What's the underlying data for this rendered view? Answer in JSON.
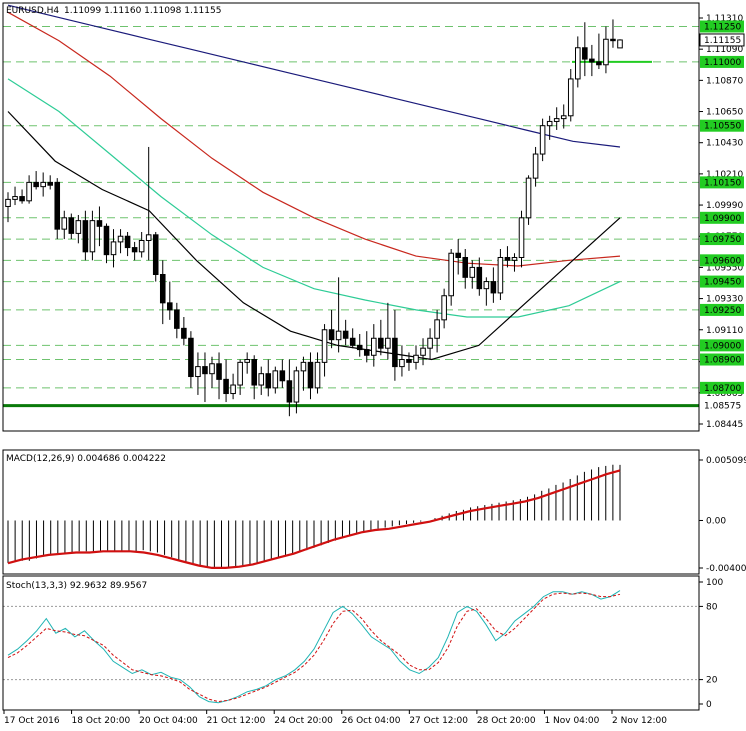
{
  "symbol_title": "EURUSD,H4",
  "ohlc_title": "1.11099 1.11160 1.11098 1.11155",
  "colors": {
    "background": "#ffffff",
    "frame": "#000000",
    "grid": "#c8c8c8",
    "bull": "#ffffff",
    "bear": "#000000",
    "sma_slow": "#1a1a7a",
    "sma_mid": "#c8281e",
    "sma_fast": "#2ecc96",
    "sma_short": "#000000",
    "level": "#0a7a0a",
    "level_label_bg": "#22cc22",
    "macd_signal": "#d01010",
    "stoch_main": "#20b4b4",
    "stoch_signal": "#d01010"
  },
  "price_axis_labels": [
    "1.11310",
    "1.11090",
    "1.10870",
    "1.10650",
    "1.10430",
    "1.10210",
    "1.09990",
    "1.09770",
    "1.09550",
    "1.09330",
    "1.09110",
    "1.08885",
    "1.08665",
    "1.08445"
  ],
  "current_price": "1.11155",
  "level_labels": [
    {
      "text": "1.11250",
      "value": 1.1125,
      "style": "dash"
    },
    {
      "text": "1.11000",
      "value": 1.11,
      "style": "dash"
    },
    {
      "text": "1.10550",
      "value": 1.1055,
      "style": "dash"
    },
    {
      "text": "1.10150",
      "value": 1.1015,
      "style": "dash"
    },
    {
      "text": "1.09900",
      "value": 1.099,
      "style": "dash"
    },
    {
      "text": "1.09750",
      "value": 1.0975,
      "style": "dash"
    },
    {
      "text": "1.09600",
      "value": 1.096,
      "style": "dash"
    },
    {
      "text": "1.09450",
      "value": 1.0945,
      "style": "dash"
    },
    {
      "text": "1.09250",
      "value": 1.0925,
      "style": "dash"
    },
    {
      "text": "1.09000",
      "value": 1.09,
      "style": "dash"
    },
    {
      "text": "1.08900",
      "value": 1.089,
      "style": "dash"
    },
    {
      "text": "1.08700",
      "value": 1.087,
      "style": "dash"
    },
    {
      "text": "1.08575",
      "value": 1.08575,
      "style": "solid"
    }
  ],
  "time_labels": [
    "17 Oct 2016",
    "18 Oct 20:00",
    "20 Oct 04:00",
    "21 Oct 12:00",
    "24 Oct 20:00",
    "26 Oct 04:00",
    "27 Oct 12:00",
    "28 Oct 20:00",
    "1 Nov 04:00",
    "2 Nov 12:00"
  ],
  "macd_title": "MACD(12,26,9) 0.004686 0.004222",
  "macd_axis_labels": [
    "0.005099",
    "0.00",
    "-0.004007"
  ],
  "stoch_title": "Stoch(13,3,3) 92.9632 89.9567",
  "stoch_axis_labels": [
    "100",
    "80",
    "20",
    "0"
  ],
  "chart_data": [
    {
      "type": "candlestick",
      "title": "EURUSD,H4",
      "ylim": [
        1.08445,
        1.1131
      ],
      "x_labels": [
        "17 Oct 2016",
        "18 Oct 20:00",
        "20 Oct 04:00",
        "21 Oct 12:00",
        "24 Oct 20:00",
        "26 Oct 04:00",
        "27 Oct 12:00",
        "28 Oct 20:00",
        "1 Nov 04:00",
        "2 Nov 12:00"
      ],
      "candles": [
        [
          1.0998,
          1.1008,
          1.0987,
          1.1003
        ],
        [
          1.1003,
          1.1012,
          1.0999,
          1.1005
        ],
        [
          1.1005,
          1.101,
          1.1,
          1.1002
        ],
        [
          1.1002,
          1.102,
          1.1,
          1.1015
        ],
        [
          1.1015,
          1.1023,
          1.101,
          1.1012
        ],
        [
          1.1012,
          1.1022,
          1.1005,
          1.1015
        ],
        [
          1.1015,
          1.102,
          1.101,
          1.1013
        ],
        [
          1.1015,
          1.1018,
          1.0975,
          1.0982
        ],
        [
          1.0982,
          1.0995,
          1.0975,
          1.099
        ],
        [
          1.099,
          1.0993,
          1.0975,
          1.0979
        ],
        [
          1.0979,
          1.0992,
          1.0972,
          1.0988
        ],
        [
          1.0988,
          1.0995,
          1.096,
          1.0966
        ],
        [
          1.0966,
          1.0995,
          1.096,
          1.0988
        ],
        [
          1.0988,
          1.0998,
          1.097,
          1.0984
        ],
        [
          1.0984,
          1.0986,
          1.0958,
          1.0964
        ],
        [
          1.0964,
          1.0982,
          1.0955,
          1.0973
        ],
        [
          1.0973,
          1.0982,
          1.0965,
          1.0977
        ],
        [
          1.0977,
          1.098,
          1.0963,
          1.0969
        ],
        [
          1.0969,
          1.0973,
          1.096,
          1.0966
        ],
        [
          1.0966,
          1.098,
          1.0962,
          1.0974
        ],
        [
          1.0974,
          1.104,
          1.096,
          1.0978
        ],
        [
          1.0978,
          1.098,
          1.0945,
          1.095
        ],
        [
          1.095,
          1.096,
          1.0915,
          1.093
        ],
        [
          1.093,
          1.0945,
          1.0918,
          1.0925
        ],
        [
          1.0925,
          1.093,
          1.0905,
          1.0912
        ],
        [
          1.0912,
          1.092,
          1.09,
          1.0905
        ],
        [
          1.0905,
          1.091,
          1.087,
          1.0878
        ],
        [
          1.0878,
          1.0895,
          1.0865,
          1.0885
        ],
        [
          1.0885,
          1.0895,
          1.086,
          1.088
        ],
        [
          1.088,
          1.0892,
          1.087,
          1.0887
        ],
        [
          1.0887,
          1.0895,
          1.0862,
          1.0876
        ],
        [
          1.0876,
          1.089,
          1.086,
          1.0866
        ],
        [
          1.0866,
          1.088,
          1.0862,
          1.0872
        ],
        [
          1.0872,
          1.089,
          1.0865,
          1.0888
        ],
        [
          1.0888,
          1.0895,
          1.088,
          1.089
        ],
        [
          1.089,
          1.0893,
          1.0862,
          1.0872
        ],
        [
          1.0872,
          1.0885,
          1.0865,
          1.088
        ],
        [
          1.088,
          1.089,
          1.0864,
          1.087
        ],
        [
          1.087,
          1.0885,
          1.0866,
          1.0882
        ],
        [
          1.0882,
          1.089,
          1.087,
          1.0875
        ],
        [
          1.0875,
          1.089,
          1.085,
          1.086
        ],
        [
          1.086,
          1.0885,
          1.0852,
          1.0882
        ],
        [
          1.0882,
          1.0892,
          1.0868,
          1.0888
        ],
        [
          1.0888,
          1.0895,
          1.0862,
          1.087
        ],
        [
          1.087,
          1.0895,
          1.0866,
          1.0888
        ],
        [
          1.0888,
          1.0915,
          1.0878,
          1.0911
        ],
        [
          1.0911,
          1.0925,
          1.0898,
          1.0904
        ],
        [
          1.0904,
          1.0948,
          1.0895,
          1.091
        ],
        [
          1.091,
          1.0918,
          1.09,
          1.0905
        ],
        [
          1.0905,
          1.0912,
          1.0898,
          1.09
        ],
        [
          1.09,
          1.0908,
          1.0892,
          1.0897
        ],
        [
          1.0897,
          1.091,
          1.0888,
          1.0893
        ],
        [
          1.0893,
          1.0915,
          1.0885,
          1.0905
        ],
        [
          1.0905,
          1.0918,
          1.0893,
          1.0898
        ],
        [
          1.0898,
          1.093,
          1.089,
          1.0905
        ],
        [
          1.0905,
          1.0925,
          1.0875,
          1.0885
        ],
        [
          1.0885,
          1.09,
          1.0878,
          1.089
        ],
        [
          1.089,
          1.0895,
          1.0882,
          1.0888
        ],
        [
          1.0888,
          1.09,
          1.0883,
          1.0893
        ],
        [
          1.0893,
          1.0905,
          1.0886,
          1.0898
        ],
        [
          1.0898,
          1.0912,
          1.089,
          1.0905
        ],
        [
          1.0905,
          1.0925,
          1.0895,
          1.0918
        ],
        [
          1.0918,
          1.094,
          1.0912,
          1.0935
        ],
        [
          1.0935,
          1.0968,
          1.0928,
          1.0965
        ],
        [
          1.0965,
          1.0975,
          1.095,
          1.0962
        ],
        [
          1.0962,
          1.0968,
          1.094,
          1.0948
        ],
        [
          1.0948,
          1.096,
          1.094,
          1.0955
        ],
        [
          1.0955,
          1.0962,
          1.0935,
          1.094
        ],
        [
          1.094,
          1.0948,
          1.0928,
          1.0945
        ],
        [
          1.0945,
          1.0955,
          1.093,
          1.0937
        ],
        [
          1.0937,
          1.0968,
          1.0932,
          1.0962
        ],
        [
          1.0962,
          1.097,
          1.0955,
          1.096
        ],
        [
          1.096,
          1.0965,
          1.0952,
          1.0962
        ],
        [
          1.0962,
          1.0995,
          1.0955,
          1.099
        ],
        [
          1.099,
          1.102,
          1.0985,
          1.1018
        ],
        [
          1.1018,
          1.104,
          1.1012,
          1.1035
        ],
        [
          1.1035,
          1.106,
          1.103,
          1.1055
        ],
        [
          1.1055,
          1.1062,
          1.1045,
          1.1058
        ],
        [
          1.1058,
          1.1068,
          1.1052,
          1.106
        ],
        [
          1.106,
          1.107,
          1.1053,
          1.1062
        ],
        [
          1.1062,
          1.1095,
          1.1058,
          1.1088
        ],
        [
          1.1088,
          1.1118,
          1.1082,
          1.111
        ],
        [
          1.111,
          1.1128,
          1.109,
          1.1102
        ],
        [
          1.1102,
          1.1112,
          1.109,
          1.11
        ],
        [
          1.11,
          1.112,
          1.1095,
          1.1098
        ],
        [
          1.1098,
          1.1125,
          1.1092,
          1.1116
        ],
        [
          1.1116,
          1.113,
          1.111,
          1.1115
        ],
        [
          1.11099,
          1.1116,
          1.11098,
          1.11155
        ]
      ],
      "series": [
        {
          "color": "#1a1a7a",
          "values": [
            1.114,
            1.1132,
            1.1124,
            1.1116,
            1.1108,
            1.11,
            1.1092,
            1.1084,
            1.1076,
            1.1068,
            1.106,
            1.1052,
            1.1044,
            1.104
          ]
        },
        {
          "color": "#c8281e",
          "values": [
            1.1135,
            1.1115,
            1.109,
            1.106,
            1.1032,
            1.1008,
            1.099,
            1.0975,
            1.0963,
            1.0958,
            1.0956,
            1.096,
            1.0963
          ]
        },
        {
          "color": "#2ecc96",
          "values": [
            1.1088,
            1.1065,
            1.1035,
            1.1005,
            1.0978,
            1.0955,
            1.094,
            1.0932,
            1.0925,
            1.092,
            1.092,
            1.0928,
            1.0945
          ]
        },
        {
          "color": "#000000",
          "values": [
            1.1065,
            1.103,
            1.101,
            1.0995,
            1.096,
            1.093,
            1.091,
            1.09,
            1.0895,
            1.089,
            1.09,
            1.093,
            1.096,
            1.099
          ]
        }
      ]
    },
    {
      "type": "bar",
      "title": "MACD(12,26,9) 0.004686 0.004222",
      "ylim": [
        -0.004007,
        0.005099
      ],
      "macd_hist": [
        -0.0036,
        -0.0035,
        -0.0034,
        -0.0034,
        -0.0032,
        -0.003,
        -0.0029,
        -0.0028,
        -0.0027,
        -0.0027,
        -0.0026,
        -0.0026,
        -0.0026,
        -0.0026,
        -0.0026,
        -0.0026,
        -0.0026,
        -0.0026,
        -0.0026,
        -0.0025,
        -0.0026,
        -0.0027,
        -0.0029,
        -0.0031,
        -0.0033,
        -0.0035,
        -0.0037,
        -0.0039,
        -0.004,
        -0.004,
        -0.004,
        -0.004,
        -0.004,
        -0.0038,
        -0.0037,
        -0.0036,
        -0.0034,
        -0.0033,
        -0.0031,
        -0.003,
        -0.0029,
        -0.0027,
        -0.0025,
        -0.0023,
        -0.0021,
        -0.0019,
        -0.0017,
        -0.0015,
        -0.0013,
        -0.0011,
        -0.001,
        -0.0009,
        -0.0007,
        -0.0006,
        -0.0005,
        -0.0004,
        -0.0003,
        -0.0002,
        -0.0001,
        0.0,
        0.0002,
        0.0004,
        0.0006,
        0.0008,
        0.0009,
        0.0011,
        0.0012,
        0.0013,
        0.0014,
        0.0015,
        0.0016,
        0.0017,
        0.0018,
        0.002,
        0.0022,
        0.0025,
        0.0027,
        0.003,
        0.0032,
        0.0035,
        0.0038,
        0.0041,
        0.0043,
        0.0045,
        0.0046,
        0.0047,
        0.004686
      ],
      "signal": [
        -0.0036,
        -0.0033,
        -0.0031,
        -0.0029,
        -0.0028,
        -0.0027,
        -0.0027,
        -0.0026,
        -0.0026,
        -0.0026,
        -0.0027,
        -0.0029,
        -0.0032,
        -0.0035,
        -0.0038,
        -0.004,
        -0.004,
        -0.0039,
        -0.0037,
        -0.0034,
        -0.0031,
        -0.0028,
        -0.0024,
        -0.002,
        -0.0016,
        -0.0013,
        -0.001,
        -0.0008,
        -0.0007,
        -0.0005,
        -0.0003,
        -0.0001,
        0.0002,
        0.0005,
        0.0008,
        0.001,
        0.0012,
        0.0014,
        0.0016,
        0.0019,
        0.0023,
        0.0027,
        0.0031,
        0.0035,
        0.0039,
        0.004222
      ]
    },
    {
      "type": "line",
      "title": "Stoch(13,3,3) 92.9632 89.9567",
      "ylim": [
        0,
        100
      ],
      "main": [
        40,
        45,
        52,
        60,
        70,
        58,
        62,
        55,
        60,
        52,
        45,
        35,
        30,
        25,
        28,
        24,
        26,
        22,
        20,
        14,
        6,
        2,
        1,
        3,
        6,
        10,
        12,
        15,
        20,
        23,
        28,
        35,
        45,
        60,
        75,
        80,
        74,
        65,
        55,
        50,
        45,
        35,
        28,
        25,
        30,
        38,
        55,
        75,
        80,
        76,
        65,
        52,
        58,
        68,
        74,
        80,
        88,
        92,
        92,
        90,
        92,
        90,
        86,
        88,
        92.9632
      ],
      "signal": [
        38,
        42,
        48,
        55,
        62,
        60,
        59,
        57,
        56,
        52,
        48,
        40,
        34,
        28,
        26,
        24,
        23,
        21,
        18,
        12,
        8,
        4,
        2,
        3,
        5,
        8,
        11,
        14,
        18,
        22,
        26,
        32,
        40,
        52,
        66,
        76,
        77,
        70,
        60,
        52,
        46,
        40,
        32,
        28,
        28,
        34,
        46,
        64,
        76,
        78,
        70,
        60,
        56,
        62,
        70,
        78,
        86,
        90,
        91,
        90,
        91,
        90,
        88,
        88,
        89.9567
      ]
    }
  ]
}
